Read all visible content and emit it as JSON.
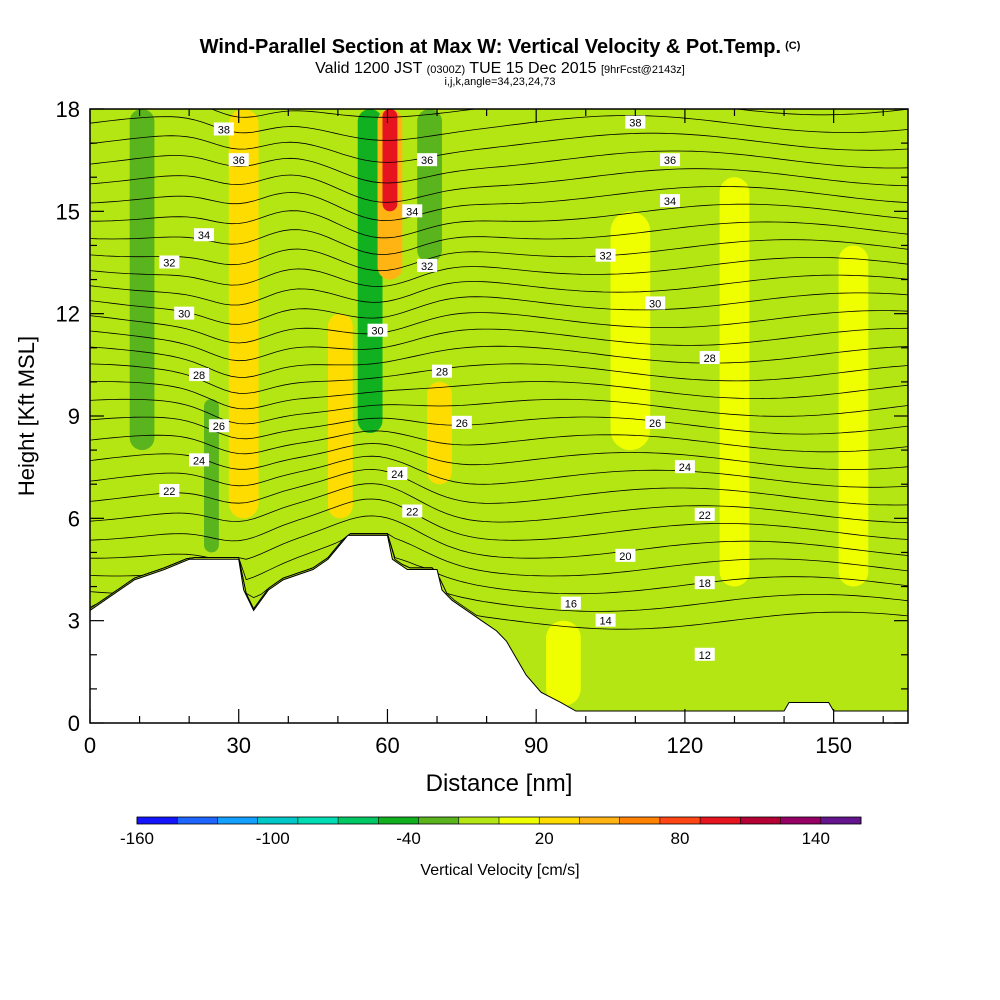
{
  "header": {
    "title": "Wind-Parallel Section at Max W: Vertical Velocity & Pot.Temp.",
    "copyright": "(C)",
    "valid_prefix": "Valid 1200 JST",
    "valid_utc": "(0300Z)",
    "valid_date": "TUE 15 Dec 2015",
    "forecast": "[9hrFcst@2143z]",
    "params": "i,j,k,angle=34,23,24,73"
  },
  "chart_data": {
    "type": "contour",
    "xlabel": "Distance [nm]",
    "ylabel": "Height [Kft MSL]",
    "xlim": [
      0,
      165
    ],
    "ylim": [
      0,
      18
    ],
    "x_ticks": [
      "0",
      "30",
      "60",
      "90",
      "120",
      "150"
    ],
    "y_ticks": [
      "0",
      "3",
      "6",
      "9",
      "12",
      "15",
      "18"
    ],
    "colorbar": {
      "label": "Vertical Velocity [cm/s]",
      "tick_labels": [
        "-160",
        "-100",
        "-40",
        "20",
        "80",
        "140"
      ],
      "colors": [
        "#1414ff",
        "#1e64ff",
        "#14a0ff",
        "#00c8c8",
        "#00dcb4",
        "#00c864",
        "#10b020",
        "#5ab41e",
        "#b4e614",
        "#f0ff00",
        "#ffdc00",
        "#ffb414",
        "#ff8200",
        "#ff4614",
        "#e6141e",
        "#b40032",
        "#960064",
        "#64148c"
      ]
    },
    "fill_bands": [
      {
        "x": 8,
        "w": 5,
        "color": "#5ab41e",
        "y0": 8.0,
        "y1": 18
      },
      {
        "x": 28,
        "w": 6,
        "color": "#ffdc00",
        "y0": 6.0,
        "y1": 18
      },
      {
        "x": 23,
        "w": 3,
        "color": "#5ab41e",
        "y0": 5.0,
        "y1": 9.5
      },
      {
        "x": 48,
        "w": 5,
        "color": "#ffdc00",
        "y0": 6.0,
        "y1": 12
      },
      {
        "x": 54,
        "w": 5,
        "color": "#10b020",
        "y0": 8.5,
        "y1": 18
      },
      {
        "x": 58,
        "w": 5,
        "color": "#ffb414",
        "y0": 13,
        "y1": 18
      },
      {
        "x": 59,
        "w": 3,
        "color": "#e6141e",
        "y0": 15,
        "y1": 18
      },
      {
        "x": 66,
        "w": 5,
        "color": "#5ab41e",
        "y0": 13.5,
        "y1": 18
      },
      {
        "x": 68,
        "w": 5,
        "color": "#ffdc00",
        "y0": 7.0,
        "y1": 10
      },
      {
        "x": 105,
        "w": 8,
        "color": "#f0ff00",
        "y0": 8,
        "y1": 15
      },
      {
        "x": 127,
        "w": 6,
        "color": "#f0ff00",
        "y0": 4,
        "y1": 16
      },
      {
        "x": 151,
        "w": 6,
        "color": "#f0ff00",
        "y0": 4,
        "y1": 14
      },
      {
        "x": 92,
        "w": 7,
        "color": "#f0ff00",
        "y0": 0.5,
        "y1": 3
      }
    ],
    "terrain_kft": [
      [
        0,
        3.3
      ],
      [
        3,
        3.6
      ],
      [
        6,
        3.9
      ],
      [
        9,
        4.2
      ],
      [
        15,
        4.5
      ],
      [
        20,
        4.8
      ],
      [
        30,
        4.8
      ],
      [
        31,
        3.9
      ],
      [
        33,
        3.3
      ],
      [
        36,
        3.9
      ],
      [
        39,
        4.2
      ],
      [
        45,
        4.5
      ],
      [
        48,
        4.8
      ],
      [
        52,
        5.5
      ],
      [
        60,
        5.5
      ],
      [
        61,
        4.8
      ],
      [
        64,
        4.5
      ],
      [
        70,
        4.5
      ],
      [
        71,
        3.9
      ],
      [
        73,
        3.6
      ],
      [
        76,
        3.3
      ],
      [
        79,
        3.0
      ],
      [
        82,
        2.7
      ],
      [
        84,
        2.4
      ],
      [
        86,
        1.9
      ],
      [
        88,
        1.4
      ],
      [
        91,
        0.9
      ],
      [
        95,
        0.6
      ],
      [
        98,
        0.35
      ],
      [
        140,
        0.35
      ],
      [
        141,
        0.6
      ],
      [
        149,
        0.6
      ],
      [
        150,
        0.35
      ],
      [
        165,
        0.35
      ]
    ],
    "isentropes": [
      {
        "theta": 38,
        "labels": [
          [
            27,
            17.4
          ],
          [
            110,
            17.6
          ]
        ]
      },
      {
        "theta": 36,
        "labels": [
          [
            30,
            16.5
          ],
          [
            68,
            16.5
          ],
          [
            117,
            16.5
          ]
        ]
      },
      {
        "theta": 34,
        "labels": [
          [
            23,
            14.3
          ],
          [
            65,
            15.0
          ],
          [
            117,
            15.3
          ]
        ]
      },
      {
        "theta": 32,
        "labels": [
          [
            16,
            13.5
          ],
          [
            68,
            13.4
          ],
          [
            104,
            13.7
          ]
        ]
      },
      {
        "theta": 30,
        "labels": [
          [
            19,
            12.0
          ],
          [
            58,
            11.5
          ],
          [
            114,
            12.3
          ]
        ]
      },
      {
        "theta": 28,
        "labels": [
          [
            22,
            10.2
          ],
          [
            71,
            10.3
          ],
          [
            125,
            10.7
          ]
        ]
      },
      {
        "theta": 26,
        "labels": [
          [
            26,
            8.7
          ],
          [
            75,
            8.8
          ],
          [
            114,
            8.8
          ]
        ]
      },
      {
        "theta": 24,
        "labels": [
          [
            22,
            7.7
          ],
          [
            62,
            7.3
          ],
          [
            120,
            7.5
          ]
        ]
      },
      {
        "theta": 22,
        "labels": [
          [
            16,
            6.8
          ],
          [
            65,
            6.2
          ],
          [
            124,
            6.1
          ]
        ]
      },
      {
        "theta": 20,
        "labels": [
          [
            108,
            4.9
          ]
        ]
      },
      {
        "theta": 18,
        "labels": [
          [
            124,
            4.1
          ]
        ]
      },
      {
        "theta": 16,
        "labels": [
          [
            97,
            3.5
          ]
        ]
      },
      {
        "theta": 14,
        "labels": [
          [
            104,
            3.0
          ]
        ]
      },
      {
        "theta": 12,
        "labels": [
          [
            124,
            2.0
          ]
        ]
      }
    ]
  }
}
